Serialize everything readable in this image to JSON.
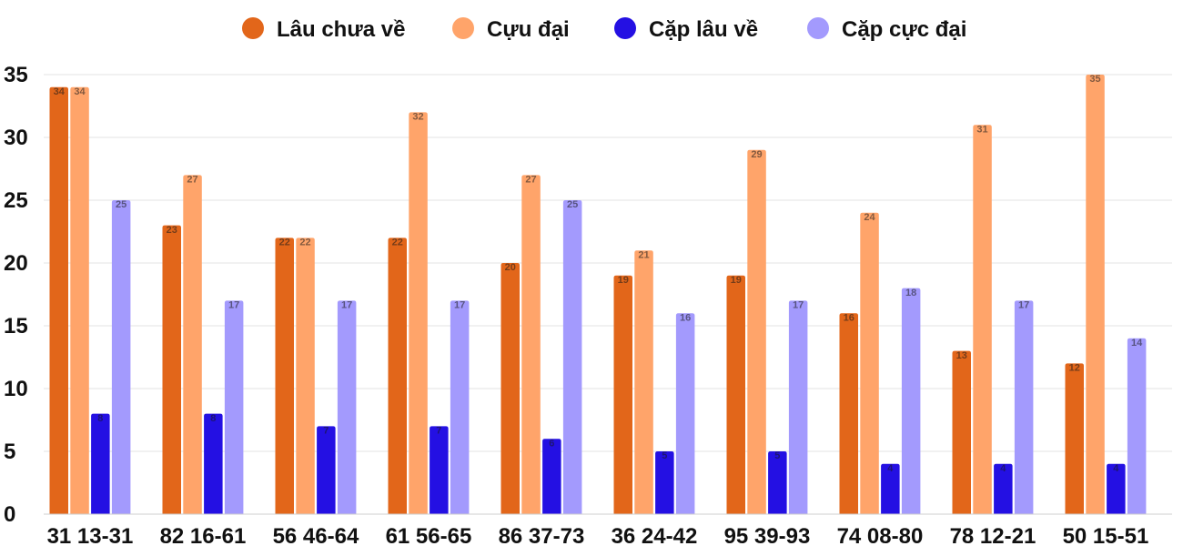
{
  "chart_data": {
    "type": "bar",
    "categories": [
      "31 13-31",
      "82 16-61",
      "56 46-64",
      "61 56-65",
      "86 37-73",
      "36 24-42",
      "95 39-93",
      "74 08-80",
      "78 12-21",
      "50 15-51"
    ],
    "series": [
      {
        "name": "Lâu chưa về",
        "color": "#e2661a",
        "values": [
          34,
          23,
          22,
          22,
          20,
          19,
          19,
          16,
          13,
          12
        ]
      },
      {
        "name": "Cựu đại",
        "color": "#ffa46a",
        "values": [
          34,
          27,
          22,
          32,
          27,
          21,
          29,
          24,
          31,
          35
        ]
      },
      {
        "name": "Cặp lâu về",
        "color": "#2410e3",
        "values": [
          8,
          8,
          7,
          7,
          6,
          5,
          5,
          4,
          4,
          4
        ]
      },
      {
        "name": "Cặp cực đại",
        "color": "#a39afd",
        "values": [
          25,
          17,
          17,
          17,
          25,
          16,
          17,
          18,
          17,
          14
        ]
      }
    ],
    "y_ticks": [
      "0",
      "5",
      "10",
      "15",
      "20",
      "25",
      "30",
      "35"
    ],
    "ylim": [
      0,
      35
    ],
    "grid": true,
    "legend_position": "top-center",
    "data_labels": true
  }
}
